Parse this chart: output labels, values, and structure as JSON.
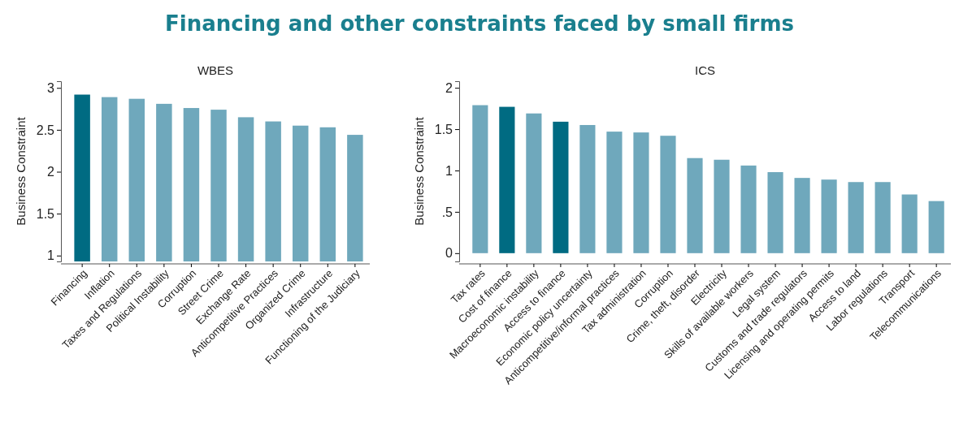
{
  "chart_data": [
    {
      "type": "bar",
      "title": "WBES",
      "ylabel": "Business Constraint",
      "annotations": [
        "Financing and other constraints faced by small firms"
      ],
      "categories": [
        "Financing",
        "Inflation",
        "Taxes and Regulations",
        "Political Instability",
        "Corruption",
        "Street Crime",
        "Exchange Rate",
        "Anticompetitive Practices",
        "Organized Crime",
        "Infrastructure",
        "Functioning of the Judiciary"
      ],
      "values": [
        2.92,
        2.89,
        2.87,
        2.81,
        2.76,
        2.74,
        2.65,
        2.6,
        2.55,
        2.53,
        2.44
      ],
      "colors": [
        "#006b82",
        "#6fa8bc",
        "#6fa8bc",
        "#6fa8bc",
        "#6fa8bc",
        "#6fa8bc",
        "#6fa8bc",
        "#6fa8bc",
        "#6fa8bc",
        "#6fa8bc",
        "#6fa8bc"
      ],
      "ylim": [
        0.93,
        3.08
      ],
      "yticks": [
        1,
        1.5,
        2,
        2.5,
        3
      ],
      "grid": false
    },
    {
      "type": "bar",
      "title": "ICS",
      "ylabel": "Business Constraint",
      "categories": [
        "Tax rates",
        "Cost of finance",
        "Macroeconomic instability",
        "Access to finance",
        "Economic policy uncertainty",
        "Anticompetitive/informal practices",
        "Tax administration",
        "Corruption",
        "Crime, theft, disorder",
        "Electricity",
        "Skills of available workers",
        "Legal system",
        "Customs and trade regulators",
        "Licensing and operating permits",
        "Access to land",
        "Labor regulations",
        "Transport",
        "Telecommunications"
      ],
      "values": [
        1.79,
        1.77,
        1.69,
        1.59,
        1.55,
        1.47,
        1.46,
        1.42,
        1.15,
        1.13,
        1.06,
        0.98,
        0.91,
        0.89,
        0.86,
        0.86,
        0.71,
        0.63
      ],
      "colors": [
        "#6fa8bc",
        "#006b82",
        "#6fa8bc",
        "#006b82",
        "#6fa8bc",
        "#6fa8bc",
        "#6fa8bc",
        "#6fa8bc",
        "#6fa8bc",
        "#6fa8bc",
        "#6fa8bc",
        "#6fa8bc",
        "#6fa8bc",
        "#6fa8bc",
        "#6fa8bc",
        "#6fa8bc",
        "#6fa8bc",
        "#6fa8bc"
      ],
      "ylim": [
        -0.1,
        2.08
      ],
      "yticks": [
        0,
        {
          "value": 0.5,
          "label": ".5"
        },
        1,
        1.5,
        2
      ],
      "grid": false
    }
  ]
}
